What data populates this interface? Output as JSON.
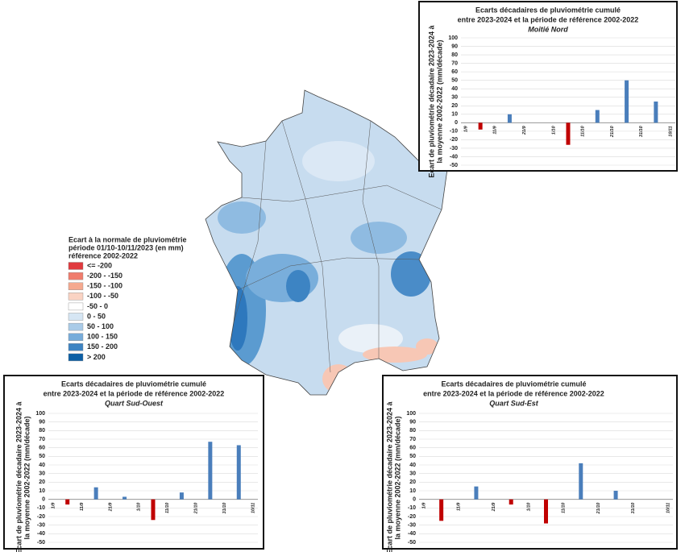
{
  "legend": {
    "title": [
      "Ecart à la normale de pluviométrie",
      "période 01/10-10/11/2023 (en mm)",
      "référence 2002-2022"
    ],
    "items": [
      {
        "label": "<= -200",
        "color": "#e03a3e"
      },
      {
        "label": "-200 - -150",
        "color": "#f07c6c"
      },
      {
        "label": "-150 - -100",
        "color": "#f5a98f"
      },
      {
        "label": "-100 - -50",
        "color": "#fad3c3"
      },
      {
        "label": "-50 - 0",
        "color": "#ffffff"
      },
      {
        "label": "0 - 50",
        "color": "#d6e6f4"
      },
      {
        "label": "50 - 100",
        "color": "#a9cbe8"
      },
      {
        "label": "100 - 150",
        "color": "#77acda"
      },
      {
        "label": "150 - 200",
        "color": "#3d84c3"
      },
      {
        "label": "> 200",
        "color": "#0b5fa5"
      }
    ]
  },
  "chart_data": [
    {
      "type": "bar",
      "title": [
        "Ecarts décadaires de pluviométrie cumulé",
        "entre 2023-2024 et la période de référence 2002-2022"
      ],
      "subtitle": "Moitié Nord",
      "ylabel": [
        "Ecart de pluviométrie décadaire 2023-2024 à",
        "la moyenne 2002-2022 (mm/décade)"
      ],
      "categories": [
        "1/9",
        "11/9",
        "21/9",
        "1/10",
        "11/10",
        "21/10",
        "31/10",
        "10/11"
      ],
      "values": [
        -8,
        10,
        null,
        -26,
        15,
        50,
        25,
        null
      ],
      "color": "#4a7ebb",
      "negative_color": "#c00000",
      "ylim": [
        -50,
        100
      ],
      "yticks": [
        -50,
        -40,
        -30,
        -20,
        -10,
        0,
        10,
        20,
        30,
        40,
        50,
        60,
        70,
        80,
        90,
        100
      ],
      "grid": true
    },
    {
      "type": "bar",
      "title": [
        "Ecarts décadaires de pluviométrie cumulé",
        "entre 2023-2024 et la période de référence 2002-2022"
      ],
      "subtitle": "Quart Sud-Ouest",
      "ylabel": [
        "Ecart de pluviométrie décadaire 2023-2024 à",
        "la moyenne 2002-2022 (mm/décade)"
      ],
      "categories": [
        "1/9",
        "11/9",
        "21/9",
        "1/10",
        "11/10",
        "21/10",
        "31/10",
        "10/11"
      ],
      "values": [
        -6,
        14,
        3,
        -24,
        8,
        67,
        63,
        null
      ],
      "color": "#4a7ebb",
      "negative_color": "#c00000",
      "ylim": [
        -50,
        100
      ],
      "yticks": [
        -50,
        -40,
        -30,
        -20,
        -10,
        0,
        10,
        20,
        30,
        40,
        50,
        60,
        70,
        80,
        90,
        100
      ],
      "grid": true
    },
    {
      "type": "bar",
      "title": [
        "Ecarts décadaires de pluviométrie cumulé",
        "entre 2023-2024 et la période de référence 2002-2022"
      ],
      "subtitle": "Quart Sud-Est",
      "ylabel": [
        "Ecart de pluviométrie décadaire 2023-2024 à",
        "la moyenne 2002-2022 (mm/décade)"
      ],
      "categories": [
        "1/9",
        "11/9",
        "21/9",
        "1/10",
        "11/10",
        "21/10",
        "31/10",
        "10/11"
      ],
      "values": [
        -25,
        15,
        -6,
        -28,
        42,
        10,
        null,
        null
      ],
      "color": "#4a7ebb",
      "negative_color": "#c00000",
      "ylim": [
        -50,
        100
      ],
      "yticks": [
        -50,
        -40,
        -30,
        -20,
        -10,
        0,
        10,
        20,
        30,
        40,
        50,
        60,
        70,
        80,
        90,
        100
      ],
      "grid": true
    }
  ]
}
